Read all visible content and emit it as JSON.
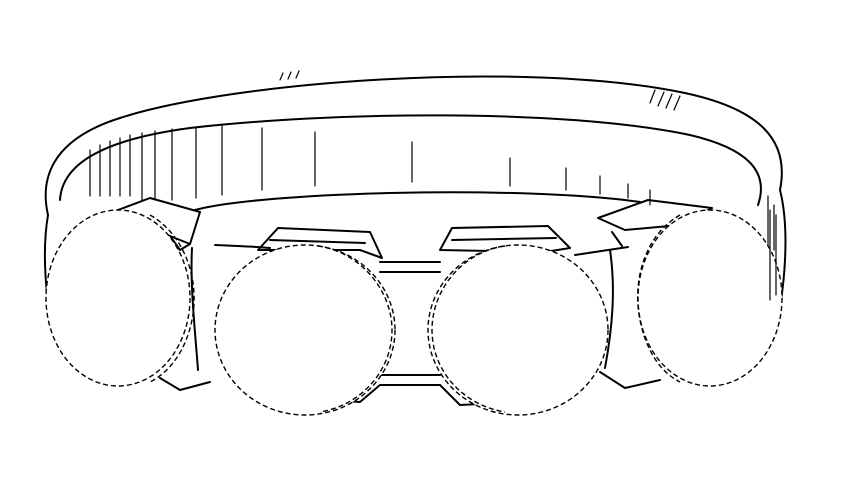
{
  "figure": {
    "subject": "ring",
    "colors": {
      "line": "#000000",
      "background": "#ffffff"
    },
    "stones": {
      "count": 4,
      "outline_style": "dashed"
    },
    "shading_style": "hatched-lines"
  }
}
